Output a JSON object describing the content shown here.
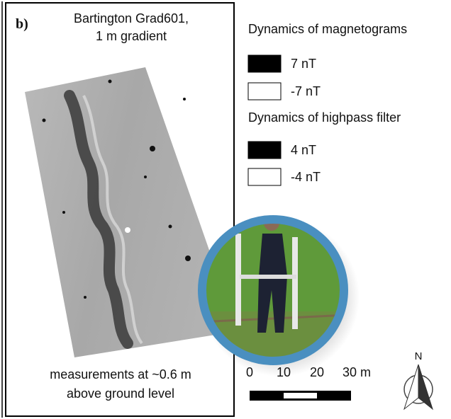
{
  "panel": {
    "label": "b)",
    "instrument": [
      "Bartington Grad601,",
      "1 m gradient"
    ],
    "note": [
      "measurements at ~0.6 m",
      "above ground level"
    ]
  },
  "legend": {
    "magnetograms": {
      "title": "Dynamics of magnetograms",
      "max": "7 nT",
      "min": "-7 nT"
    },
    "highpass": {
      "title": "Dynamics of highpass filter",
      "max": "4 nT",
      "min": "-4 nT"
    }
  },
  "scale_bar": {
    "labels": [
      "0",
      "10",
      "20",
      "30 m"
    ]
  },
  "north": "N"
}
